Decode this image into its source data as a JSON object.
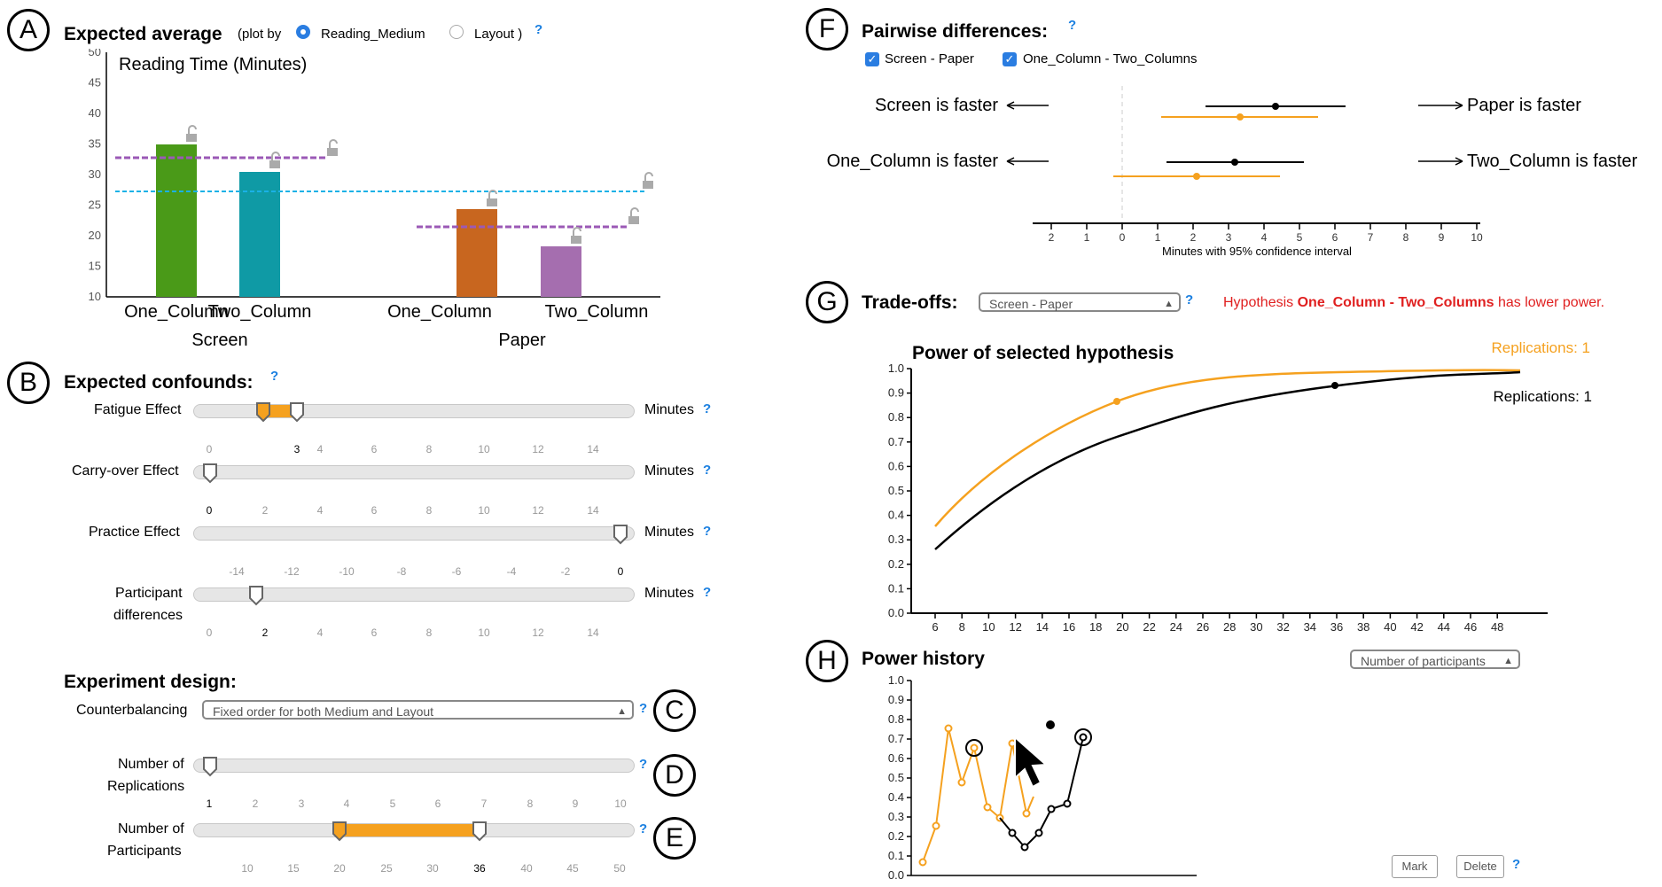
{
  "badges": {
    "a": "A",
    "b": "B",
    "c": "C",
    "d": "D",
    "e": "E",
    "f": "F",
    "g": "G",
    "h": "H"
  },
  "expected_average": {
    "title": "Expected average",
    "plot_by_prefix": "(plot by",
    "option_medium": "Reading_Medium",
    "option_layout": "Layout )",
    "help": "?",
    "chart_title": "Reading Time (Minutes)",
    "y_ticks": [
      "50",
      "45",
      "40",
      "35",
      "30",
      "25",
      "20",
      "15",
      "10"
    ],
    "bar_labels": [
      "One_Column",
      "Two_Column",
      "One_Column",
      "Two_Column"
    ],
    "group_labels": [
      "Screen",
      "Paper"
    ]
  },
  "confounds": {
    "title": "Expected confounds:",
    "help": "?",
    "unit": "Minutes",
    "fatigue": {
      "label": "Fatigue Effect",
      "ticks": [
        "0",
        "3",
        "4",
        "6",
        "8",
        "10",
        "12",
        "14"
      ]
    },
    "carryover": {
      "label": "Carry-over Effect",
      "ticks": [
        "0",
        "2",
        "4",
        "6",
        "8",
        "10",
        "12",
        "14"
      ]
    },
    "practice": {
      "label": "Practice Effect",
      "ticks": [
        "-14",
        "-12",
        "-10",
        "-8",
        "-6",
        "-4",
        "-2",
        "0"
      ]
    },
    "participant": {
      "label1": "Participant",
      "label2": "differences",
      "ticks": [
        "0",
        "2",
        "4",
        "6",
        "8",
        "10",
        "12",
        "14"
      ]
    }
  },
  "design": {
    "title": "Experiment design:",
    "counterbalancing_label": "Counterbalancing",
    "counterbalancing_value": "Fixed order for both Medium and Layout",
    "replications_label1": "Number of",
    "replications_label2": "Replications",
    "replication_ticks": [
      "1",
      "2",
      "3",
      "4",
      "5",
      "6",
      "7",
      "8",
      "9",
      "10"
    ],
    "participants_label1": "Number of",
    "participants_label2": "Participants",
    "participant_ticks": [
      "10",
      "15",
      "20",
      "25",
      "30",
      "36",
      "40",
      "45",
      "50"
    ],
    "help": "?"
  },
  "pairwise": {
    "title": "Pairwise differences:",
    "help": "?",
    "check1": "Screen - Paper",
    "check2": "One_Column - Two_Columns",
    "row1_left": "Screen is faster",
    "row1_right": "Paper is faster",
    "row2_left": "One_Column is faster",
    "row2_right": "Two_Column is faster",
    "axis_ticks": [
      "2",
      "1",
      "0",
      "1",
      "2",
      "3",
      "4",
      "5",
      "6",
      "7",
      "8",
      "9",
      "10"
    ],
    "axis_label": "Minutes with 95% confidence interval"
  },
  "tradeoffs": {
    "title": "Trade-offs:",
    "select_value": "Screen - Paper",
    "help": "?",
    "warn_prefix": "Hypothesis ",
    "warn_bold": "One_Column - Two_Columns",
    "warn_suffix": " has lower power.",
    "chart_title": "Power of selected hypothesis",
    "legend_orange": "Replications: 1",
    "legend_black": "Replications: 1",
    "y_ticks": [
      "1.0",
      "0.9",
      "0.8",
      "0.7",
      "0.6",
      "0.5",
      "0.4",
      "0.3",
      "0.2",
      "0.1",
      "0.0"
    ],
    "x_ticks": [
      "6",
      "8",
      "10",
      "12",
      "14",
      "16",
      "18",
      "20",
      "22",
      "24",
      "26",
      "28",
      "30",
      "32",
      "34",
      "36",
      "38",
      "40",
      "42",
      "44",
      "46",
      "48"
    ]
  },
  "history": {
    "title": "Power history",
    "select_value": "Number of participants",
    "y_ticks": [
      "1.0",
      "0.9",
      "0.8",
      "0.7",
      "0.6",
      "0.5",
      "0.4",
      "0.3",
      "0.2",
      "0.1",
      "0.0"
    ],
    "mark": "Mark",
    "delete": "Delete",
    "help": "?"
  },
  "colors": {
    "accent": "#f5a11f",
    "blue": "#2a7de1",
    "green": "#4a9a18",
    "teal": "#0f9aa5",
    "orange": "#c8661f",
    "purple": "#a56eaf",
    "dash_purple": "#9b59b6",
    "dash_blue": "#1ab1e6",
    "warn": "#e02020"
  }
}
